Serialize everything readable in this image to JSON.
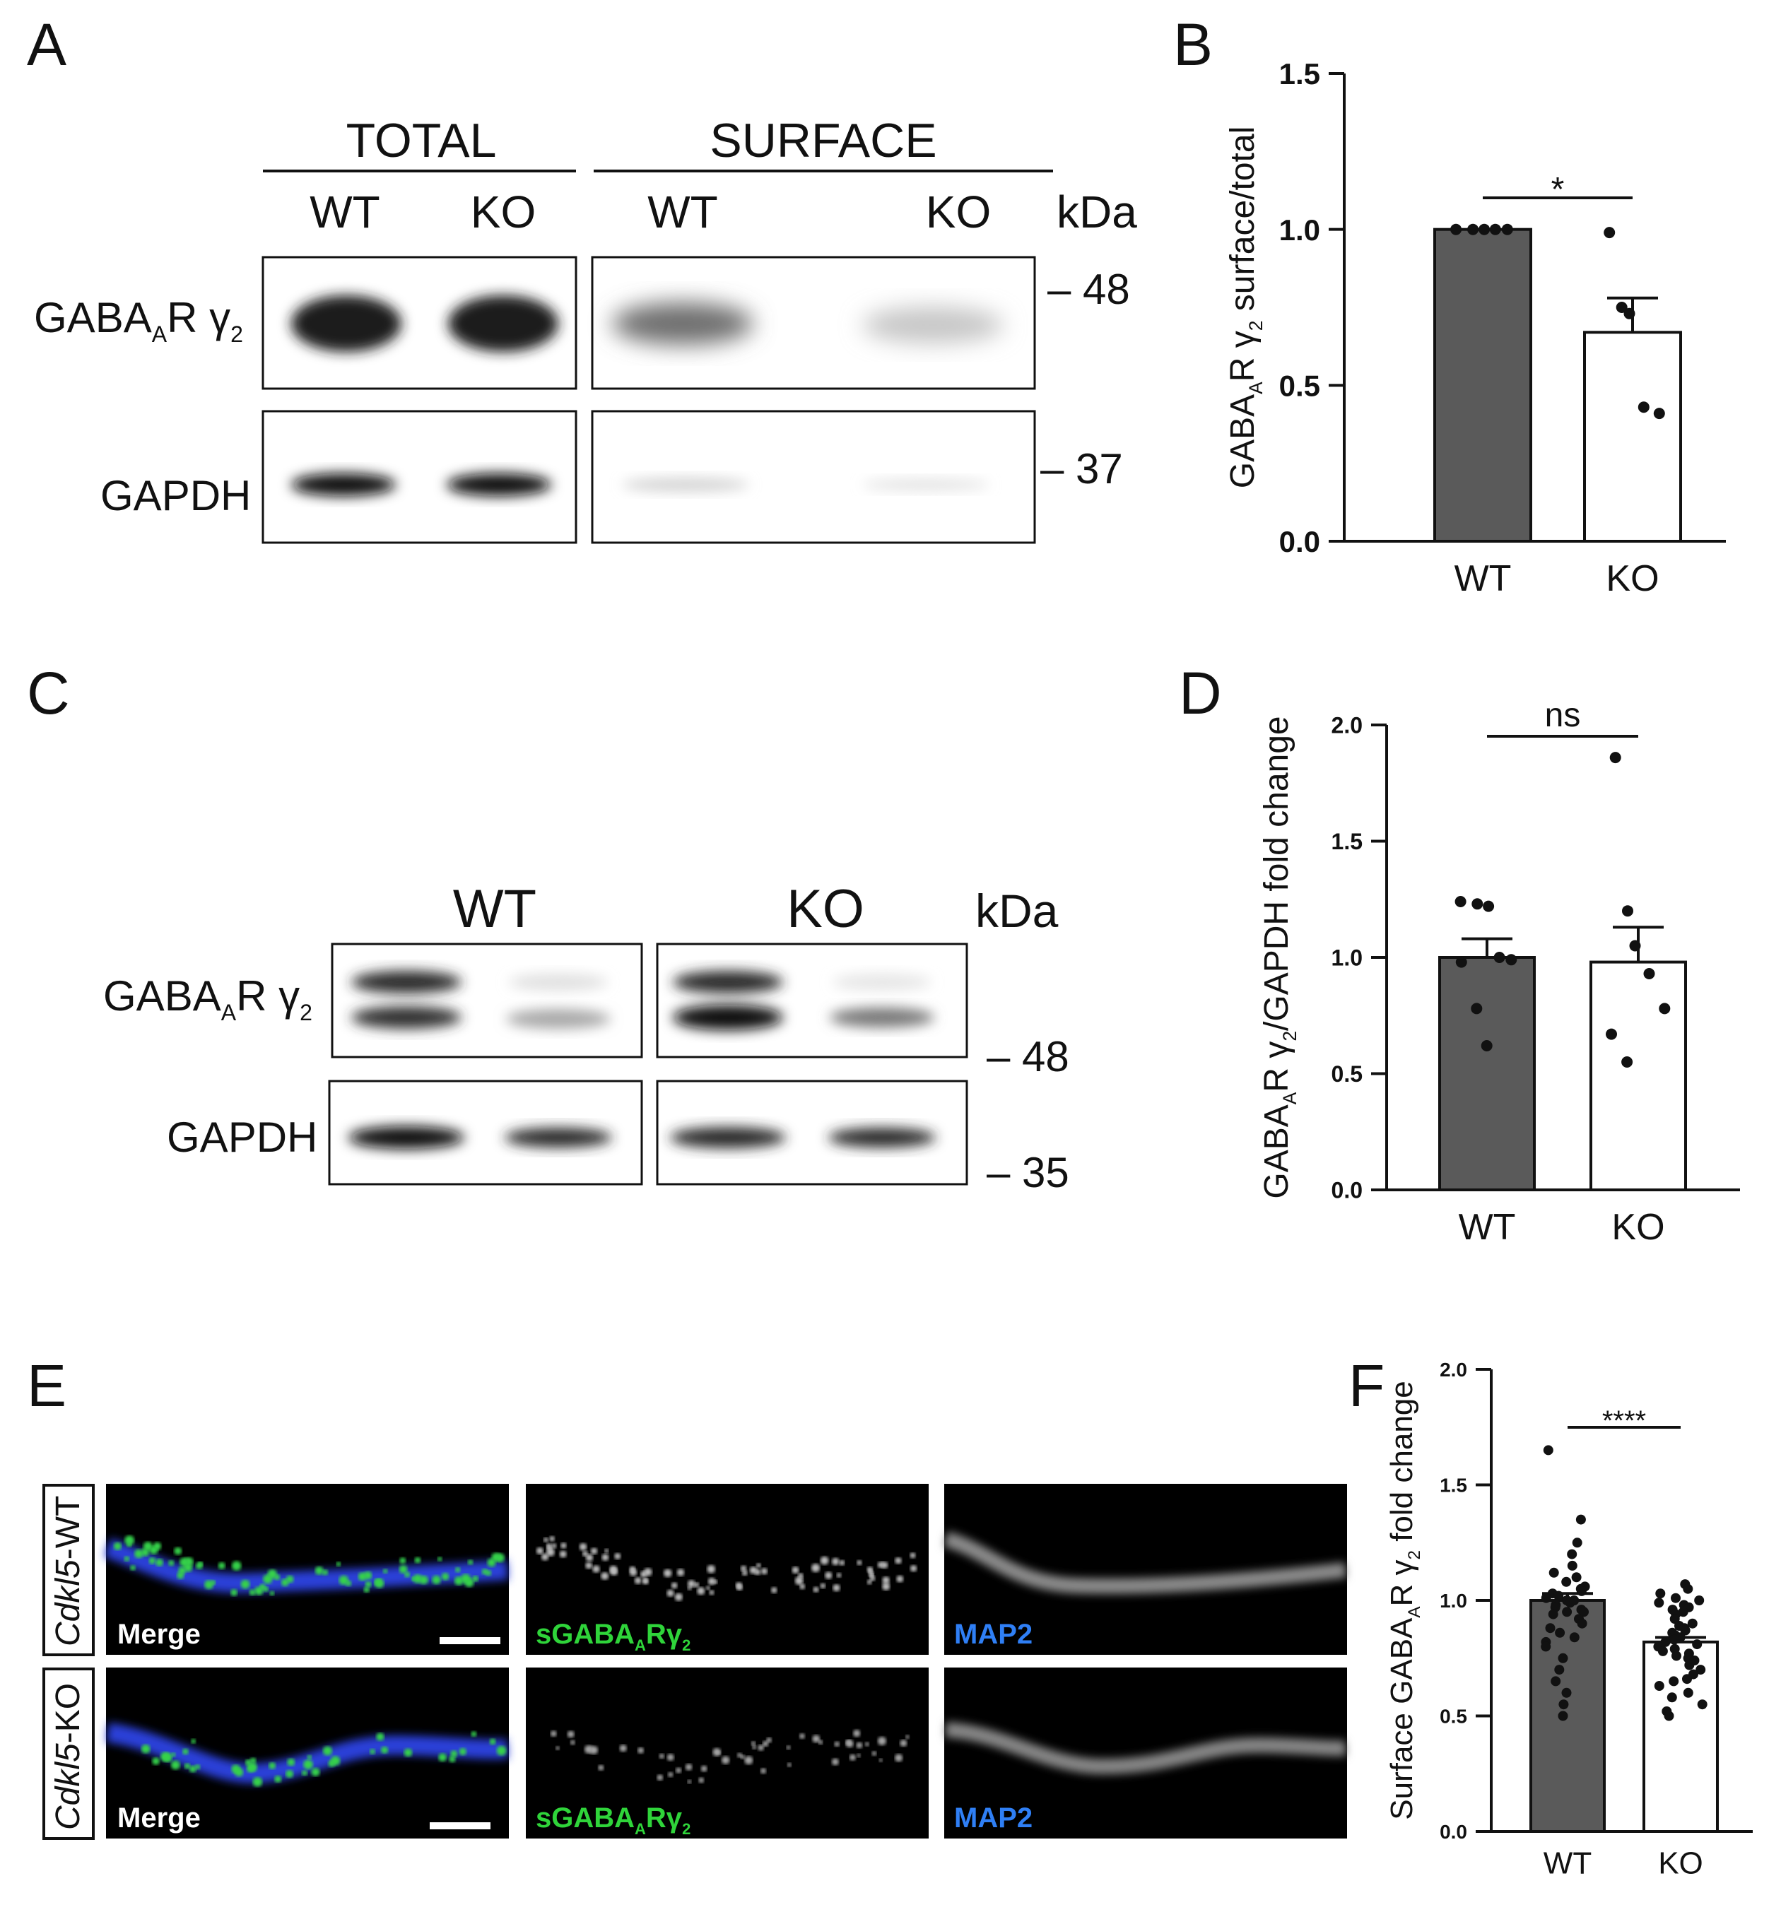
{
  "panel_letters": [
    "A",
    "B",
    "C",
    "D",
    "E",
    "F"
  ],
  "panelA": {
    "group_total": "TOTAL",
    "group_surface": "SURFACE",
    "lanes": [
      "WT",
      "KO",
      "WT",
      "KO"
    ],
    "kda_label": "kDa",
    "row_gaba": {
      "main": "GABA",
      "sub1": "A",
      "mid": "R γ",
      "sub2": "2"
    },
    "row_gapdh": "GAPDH",
    "marker_48": "– 48",
    "marker_37": "– 37"
  },
  "panelC": {
    "lanes": [
      "WT",
      "KO"
    ],
    "kda_label": "kDa",
    "row_gaba": {
      "main": "GABA",
      "sub1": "A",
      "mid": "R γ",
      "sub2": "2"
    },
    "row_gapdh": "GAPDH",
    "marker_48": "– 48",
    "marker_35": "– 35"
  },
  "panelE": {
    "rows": [
      {
        "italic": "Cdkl5",
        "rest": "-WT"
      },
      {
        "italic": "Cdkl5",
        "rest": "-KO"
      }
    ],
    "merge_label": "Merge",
    "sgaba_label": {
      "main": "sGABA",
      "sub1": "A",
      "mid": "Rγ",
      "sub2": "2"
    },
    "map2_label": "MAP2",
    "colors": {
      "dendrite": "#2a3fd8",
      "puncta": "#35d24a",
      "map2_text": "#2f7ff5",
      "sgaba_text": "#2fd43a",
      "gray_signal": "#8a8a8a"
    }
  },
  "chart_data": [
    {
      "panel": "B",
      "type": "bar",
      "categories": [
        "WT",
        "KO"
      ],
      "values": [
        1.0,
        0.67
      ],
      "sem": [
        0.0,
        0.11
      ],
      "points": [
        [
          1.0,
          1.0,
          1.0,
          1.0,
          1.0
        ],
        [
          0.99,
          0.75,
          0.73,
          0.43,
          0.41
        ]
      ],
      "ylabel": {
        "pre": "GABA",
        "sub1": "A",
        "mid": "R γ",
        "sub2": "2",
        "post": " surface/total"
      },
      "ylim": [
        0.0,
        1.5
      ],
      "yticks": [
        "0.0",
        "0.5",
        "1.0",
        "1.5"
      ],
      "significance": "*",
      "bar_colors": [
        "#5a5a5a",
        "#ffffff"
      ]
    },
    {
      "panel": "D",
      "type": "bar",
      "categories": [
        "WT",
        "KO"
      ],
      "values": [
        1.0,
        0.98
      ],
      "sem": [
        0.08,
        0.15
      ],
      "points": [
        [
          1.24,
          1.23,
          1.22,
          1.0,
          0.99,
          0.98,
          0.78,
          0.62
        ],
        [
          1.86,
          1.2,
          1.05,
          0.93,
          0.78,
          0.67,
          0.55
        ]
      ],
      "ylabel": {
        "pre": "GABA",
        "sub1": "A",
        "mid": "R γ",
        "sub2": "2",
        "post": "/GAPDH fold change"
      },
      "ylim": [
        0.0,
        2.0
      ],
      "yticks": [
        "0.0",
        "0.5",
        "1.0",
        "1.5",
        "2.0"
      ],
      "significance": "ns",
      "bar_colors": [
        "#5a5a5a",
        "#ffffff"
      ]
    },
    {
      "panel": "F",
      "type": "bar",
      "categories": [
        "WT",
        "KO"
      ],
      "values": [
        1.0,
        0.82
      ],
      "sem": [
        0.03,
        0.02
      ],
      "points": [
        [
          1.65,
          1.35,
          1.25,
          1.2,
          1.15,
          1.12,
          1.1,
          1.08,
          1.06,
          1.05,
          1.04,
          1.03,
          1.02,
          1.01,
          1.0,
          1.0,
          0.99,
          0.98,
          0.97,
          0.96,
          0.95,
          0.95,
          0.94,
          0.92,
          0.9,
          0.88,
          0.86,
          0.84,
          0.82,
          0.8,
          0.75,
          0.7,
          0.65,
          0.6,
          0.55,
          0.5
        ],
        [
          1.07,
          1.05,
          1.03,
          1.01,
          1.0,
          0.99,
          0.98,
          0.97,
          0.96,
          0.95,
          0.94,
          0.92,
          0.9,
          0.89,
          0.88,
          0.87,
          0.86,
          0.85,
          0.84,
          0.83,
          0.82,
          0.81,
          0.8,
          0.79,
          0.78,
          0.77,
          0.76,
          0.75,
          0.74,
          0.72,
          0.7,
          0.68,
          0.66,
          0.65,
          0.63,
          0.6,
          0.58,
          0.55,
          0.52,
          0.5
        ]
      ],
      "ylabel": {
        "pre": "Surface GABA",
        "sub1": "A",
        "mid": "R γ",
        "sub2": "2",
        "post": " fold change"
      },
      "ylim": [
        0.0,
        2.0
      ],
      "yticks": [
        "0.0",
        "0.5",
        "1.0",
        "1.5",
        "2.0"
      ],
      "significance": "****",
      "bar_colors": [
        "#5a5a5a",
        "#ffffff"
      ]
    }
  ]
}
